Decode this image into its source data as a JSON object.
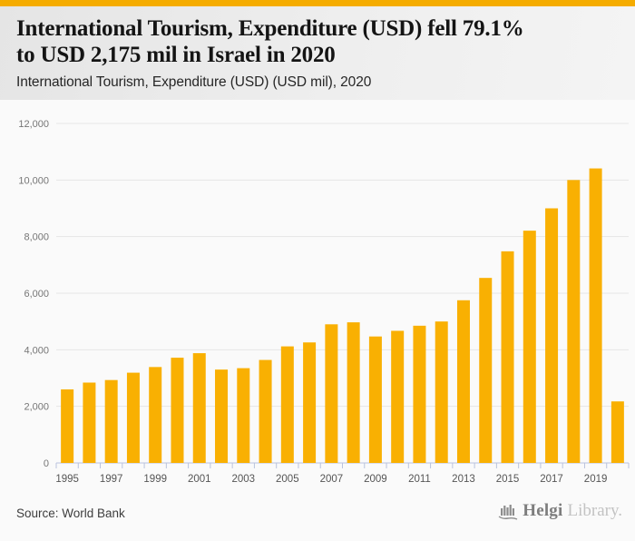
{
  "page": {
    "topbar_color": "#F5AC00",
    "background_color": "#FAFAFA",
    "header_background_color": "#ECECEC"
  },
  "header": {
    "title_line1": "International Tourism, Expenditure (USD) fell 79.1%",
    "title_line2": "to USD 2,175 mil in Israel in 2020",
    "subtitle": "International Tourism, Expenditure (USD) (USD mil), 2020"
  },
  "chart_data": {
    "type": "bar",
    "title": "International Tourism, Expenditure (USD) (USD mil), 2020",
    "xlabel": "",
    "ylabel": "",
    "categories": [
      "1995",
      "1996",
      "1997",
      "1998",
      "1999",
      "2000",
      "2001",
      "2002",
      "2003",
      "2004",
      "2005",
      "2006",
      "2007",
      "2008",
      "2009",
      "2010",
      "2011",
      "2012",
      "2013",
      "2014",
      "2015",
      "2016",
      "2017",
      "2018",
      "2019",
      "2020"
    ],
    "values": [
      2600,
      2840,
      2930,
      3190,
      3390,
      3720,
      3880,
      3300,
      3350,
      3640,
      4120,
      4260,
      4900,
      4970,
      4470,
      4670,
      4850,
      5000,
      5750,
      6540,
      7480,
      8210,
      9000,
      10000,
      10410,
      2175
    ],
    "ylim": [
      0,
      12000
    ],
    "ytick_step": 2000,
    "ytick_labels": [
      "0",
      "2,000",
      "4,000",
      "6,000",
      "8,000",
      "10,000",
      "12,000"
    ],
    "xtick_labels_shown": [
      "1995",
      "1997",
      "1999",
      "2001",
      "2003",
      "2005",
      "2007",
      "2009",
      "2011",
      "2013",
      "2015",
      "2017",
      "2019"
    ],
    "grid": true,
    "legend": "none",
    "colors": {
      "bar": "#F9B002",
      "grid": "#e5e5e5",
      "axis": "#b9c3de",
      "y_label": "#767676",
      "x_label": "#555555"
    }
  },
  "footer": {
    "source": "Source: World Bank",
    "logo_name": "Helgi",
    "logo_suffix": "Library."
  }
}
